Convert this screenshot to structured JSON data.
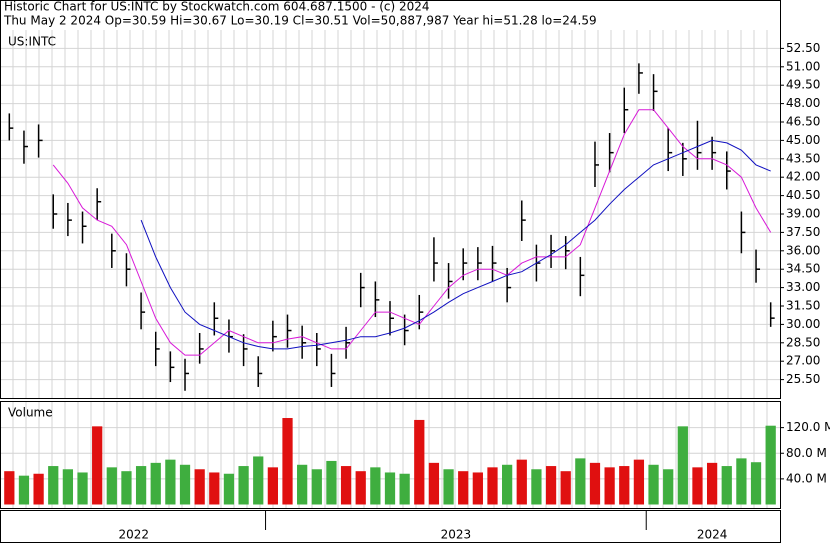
{
  "header": [
    "Historic Chart for US:INTC by Stockwatch.com 604.687.1500 - (c) 2024",
    "Thu May  2 2024  Op=30.59  Hi=30.67  Lo=30.19  Cl=30.51  Vol=50,887,987  Year hi=51.28  lo=24.59"
  ],
  "chart_data": [
    {
      "type": "ohlc",
      "title": "US:INTC",
      "color": "#000000",
      "close": [
        46,
        44.5,
        45,
        39,
        38.5,
        38,
        40,
        36,
        34.5,
        31,
        28,
        26.5,
        26,
        28,
        30.5,
        29,
        28,
        26,
        29,
        29.5,
        28.5,
        28,
        26,
        28.5,
        33,
        32,
        30.5,
        29.5,
        31,
        35,
        33.5,
        35,
        35,
        35,
        33,
        38.5,
        35,
        36,
        36,
        34,
        43,
        44,
        47.5,
        50.5,
        49,
        44,
        43.5,
        44,
        44,
        42.5,
        37.5,
        34.5,
        30.51
      ],
      "high": [
        47.2,
        45.8,
        46.3,
        40.6,
        39.9,
        39.2,
        41.1,
        37.4,
        35.8,
        32.6,
        29.4,
        27.8,
        27.2,
        29.3,
        31.8,
        30.4,
        29.2,
        27.4,
        30.3,
        30.8,
        29.9,
        29.3,
        27.6,
        29.8,
        34.2,
        33.5,
        31.9,
        30.8,
        32.4,
        37.1,
        35,
        36.2,
        36.3,
        36.4,
        34.6,
        40.1,
        36.5,
        37.3,
        37.2,
        35.5,
        44.9,
        45.6,
        49.3,
        51.28,
        50.4,
        46,
        44.8,
        46.6,
        45.3,
        44.1,
        39.2,
        36.1,
        31.8
      ],
      "low": [
        45,
        43.1,
        43.6,
        37.8,
        37.2,
        36.6,
        38.5,
        34.6,
        33.1,
        29.6,
        26.6,
        25.3,
        24.59,
        26.8,
        29.1,
        27.7,
        26.6,
        24.9,
        27.8,
        28.1,
        27.2,
        26.6,
        24.9,
        27.2,
        31.4,
        30.6,
        29.1,
        28.3,
        29.6,
        33.5,
        32.1,
        33.6,
        33.6,
        33.5,
        31.8,
        36.8,
        33.5,
        34.6,
        34.5,
        32.3,
        41.2,
        42.4,
        45.6,
        48.8,
        47.4,
        42.5,
        42.1,
        42.6,
        42.6,
        41,
        35.8,
        33.4,
        29.8
      ],
      "moving_averages": [
        {
          "color": "#d81ad8",
          "values": [
            null,
            null,
            null,
            43,
            41.5,
            39.5,
            38.5,
            38,
            36.5,
            33.5,
            30.5,
            28.5,
            27.5,
            27.5,
            28.5,
            29.5,
            29,
            28.5,
            28.5,
            28.8,
            29,
            28.5,
            28,
            28,
            29.5,
            31,
            31,
            30.5,
            30,
            31.5,
            33,
            34,
            34.5,
            34.5,
            34,
            35,
            35.5,
            35.5,
            35.5,
            36.5,
            39.5,
            42.5,
            45.5,
            47.5,
            47.5,
            46,
            44.5,
            43.5,
            43.5,
            43,
            42,
            39.5,
            37.5
          ]
        },
        {
          "color": "#1010c0",
          "values": [
            null,
            null,
            null,
            null,
            null,
            null,
            null,
            null,
            null,
            38.5,
            35.5,
            33,
            31,
            30,
            29.5,
            29,
            28.5,
            28.2,
            28,
            28,
            28.2,
            28.3,
            28.5,
            28.7,
            29,
            29,
            29.3,
            29.7,
            30.3,
            31,
            31.8,
            32.5,
            33,
            33.5,
            34,
            34.3,
            35,
            35.7,
            36.5,
            37.5,
            38.5,
            39.8,
            41,
            42,
            43,
            43.5,
            44,
            44.5,
            45,
            44.8,
            44.2,
            43,
            42.5
          ]
        }
      ],
      "ylim": [
        24,
        54
      ],
      "yticks": [
        {
          "value": 25.5,
          "label": "25.50"
        },
        {
          "value": 27,
          "label": "27.00"
        },
        {
          "value": 28.5,
          "label": "28.50"
        },
        {
          "value": 30,
          "label": "30.00"
        },
        {
          "value": 31.5,
          "label": "31.50"
        },
        {
          "value": 33,
          "label": "33.00"
        },
        {
          "value": 34.5,
          "label": "34.50"
        },
        {
          "value": 36,
          "label": "36.00"
        },
        {
          "value": 37.5,
          "label": "37.50"
        },
        {
          "value": 39,
          "label": "39.00"
        },
        {
          "value": 40.5,
          "label": "40.50"
        },
        {
          "value": 42,
          "label": "42.00"
        },
        {
          "value": 43.5,
          "label": "43.50"
        },
        {
          "value": 45,
          "label": "45.00"
        },
        {
          "value": 46.5,
          "label": "46.50"
        },
        {
          "value": 48,
          "label": "48.00"
        },
        {
          "value": 49.5,
          "label": "49.50"
        },
        {
          "value": 51,
          "label": "51.00"
        },
        {
          "value": 52.5,
          "label": "52.50"
        }
      ],
      "grid": true
    },
    {
      "type": "bar",
      "title": "Volume",
      "up_color": "#e01010",
      "down_color": "#3fae3f",
      "categories": [
        "2022",
        null,
        null,
        null,
        null,
        null,
        null,
        null,
        null,
        null,
        null,
        null,
        null,
        null,
        null,
        null,
        null,
        null,
        "2023",
        null,
        null,
        null,
        null,
        null,
        null,
        null,
        null,
        null,
        null,
        null,
        null,
        null,
        null,
        null,
        null,
        null,
        null,
        null,
        null,
        null,
        null,
        null,
        null,
        null,
        "2024",
        null,
        null,
        null,
        null,
        null,
        null,
        null,
        null
      ],
      "values": [
        52,
        45,
        48,
        60,
        55,
        50,
        122,
        58,
        52,
        60,
        65,
        70,
        62,
        55,
        50,
        48,
        60,
        75,
        58,
        135,
        62,
        55,
        68,
        60,
        52,
        58,
        50,
        48,
        132,
        65,
        55,
        52,
        50,
        58,
        62,
        70,
        55,
        60,
        52,
        72,
        65,
        58,
        60,
        70,
        62,
        55,
        122,
        58,
        65,
        60,
        72,
        66,
        123
      ],
      "ylim": [
        0,
        160
      ],
      "yticks": [
        {
          "value": 40,
          "label": "40.0 M"
        },
        {
          "value": 80,
          "label": "80.0 M"
        },
        {
          "value": 120,
          "label": "120.0 M"
        }
      ],
      "grid": true
    }
  ]
}
